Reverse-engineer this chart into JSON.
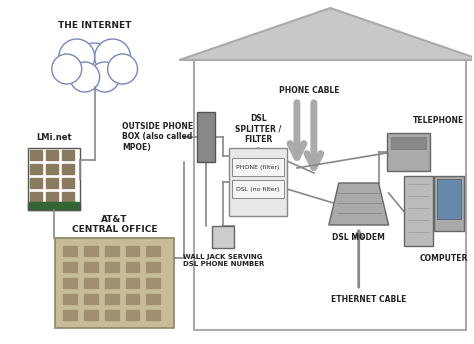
{
  "bg_color": "#ffffff",
  "labels": {
    "internet": "THE INTERNET",
    "lminet": "LMi.net",
    "attco": "AT&T\nCENTRAL OFFICE",
    "outside_box": "OUTSIDE PHONE\nBOX (also called\nMPOE)",
    "phone_cable": "PHONE CABLE",
    "telephone": "TELEPHONE",
    "dsl_splitter": "DSL\nSPLITTER /\nFILTER",
    "phone_filter": "PHONE (filter)",
    "dsl_no_filter": "DSL (no filter)",
    "wall_jack": "WALL JACK SERVING\nDSL PHONE NUMBER",
    "dsl_modem": "DSL MODEM",
    "computer": "COMPUTER",
    "ethernet": "ETHERNET CABLE"
  }
}
